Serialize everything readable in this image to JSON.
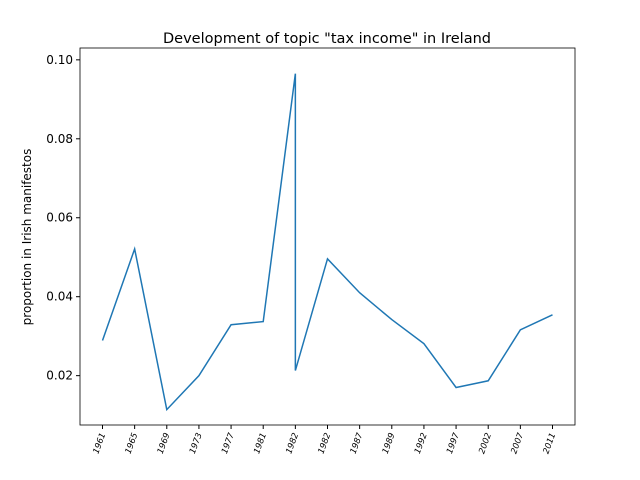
{
  "chart_data": {
    "type": "line",
    "title": "Development of topic \"tax income\" in Ireland",
    "ylabel": "proportion in Irish manifestos",
    "x": [
      0,
      1,
      2,
      3,
      4,
      5,
      6,
      6,
      7,
      8,
      9,
      10,
      11,
      12,
      13,
      14
    ],
    "series": [
      {
        "name": "tax income",
        "color": "#1f77b4",
        "values": [
          0.0289,
          0.0521,
          0.0114,
          0.02,
          0.0329,
          0.0337,
          0.0965,
          0.0213,
          0.0496,
          0.041,
          0.0342,
          0.0281,
          0.017,
          0.0187,
          0.0316,
          0.0354
        ]
      }
    ],
    "xlim": [
      -0.7,
      14.7
    ],
    "xticks": [
      {
        "value": 0,
        "label": "1961"
      },
      {
        "value": 1,
        "label": "1965"
      },
      {
        "value": 2,
        "label": "1969"
      },
      {
        "value": 3,
        "label": "1973"
      },
      {
        "value": 4,
        "label": "1977"
      },
      {
        "value": 5,
        "label": "1981"
      },
      {
        "value": 6,
        "label": "1982"
      },
      {
        "value": 7,
        "label": "1982"
      },
      {
        "value": 8,
        "label": "1987"
      },
      {
        "value": 9,
        "label": "1989"
      },
      {
        "value": 10,
        "label": "1992"
      },
      {
        "value": 11,
        "label": "1997"
      },
      {
        "value": 12,
        "label": "2002"
      },
      {
        "value": 13,
        "label": "2007"
      },
      {
        "value": 14,
        "label": "2011"
      }
    ],
    "ylim": [
      0.0075,
      0.103
    ],
    "yticks": [
      0.02,
      0.04,
      0.06,
      0.08,
      {
        "value": 0.1,
        "label": "0.10"
      }
    ]
  }
}
